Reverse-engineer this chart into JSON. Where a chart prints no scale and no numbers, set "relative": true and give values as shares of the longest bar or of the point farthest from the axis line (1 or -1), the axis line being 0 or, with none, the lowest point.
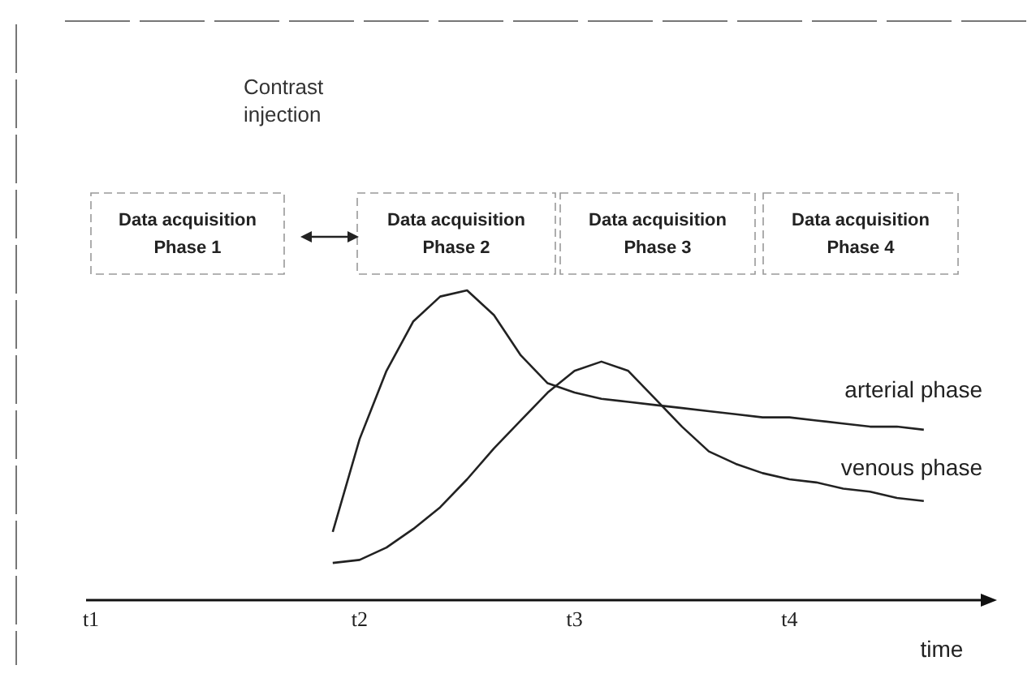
{
  "chart_data": {
    "type": "line",
    "relative": true,
    "xlabel": "time",
    "categories": [
      "t1",
      null,
      null,
      null,
      null,
      null,
      null,
      null,
      null,
      null,
      "t2",
      null,
      null,
      null,
      null,
      null,
      null,
      null,
      "t3",
      null,
      null,
      null,
      null,
      null,
      null,
      null,
      "t4",
      null,
      null,
      null,
      null,
      null,
      null,
      null
    ],
    "series": [
      {
        "name": "arterial phase",
        "color": "#222222",
        "values": [
          null,
          null,
          null,
          null,
          null,
          null,
          null,
          null,
          null,
          0.22,
          0.52,
          0.74,
          0.9,
          0.98,
          1.0,
          0.92,
          0.79,
          0.7,
          0.67,
          0.65,
          0.64,
          0.63,
          0.62,
          0.61,
          0.6,
          0.59,
          0.59,
          0.58,
          0.57,
          0.56,
          0.56,
          0.55,
          null,
          null
        ]
      },
      {
        "name": "venous phase",
        "color": "#222222",
        "values": [
          null,
          null,
          null,
          null,
          null,
          null,
          null,
          null,
          null,
          0.12,
          0.13,
          0.17,
          0.23,
          0.3,
          0.39,
          0.49,
          0.58,
          0.67,
          0.74,
          0.77,
          0.74,
          0.65,
          0.56,
          0.48,
          0.44,
          0.41,
          0.39,
          0.38,
          0.36,
          0.35,
          0.33,
          0.32,
          null,
          null
        ]
      }
    ],
    "annotations": [
      "Contrast injection",
      "Data acquisition Phase 1",
      "Data acquisition Phase 2",
      "Data acquisition Phase 3",
      "Data acquisition Phase 4"
    ],
    "grid": false,
    "legend": false,
    "marker": "none",
    "line_style": "solid"
  }
}
